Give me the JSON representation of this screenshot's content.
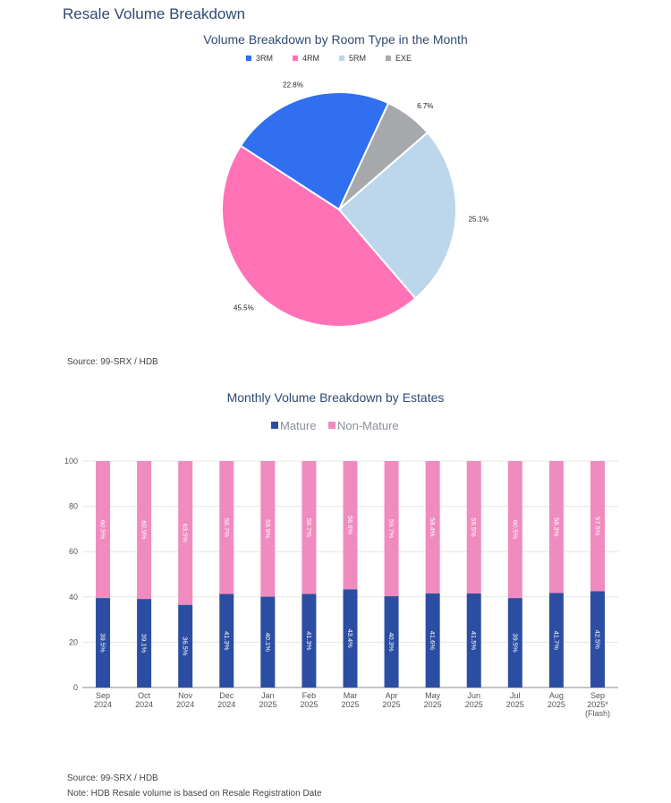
{
  "page": {
    "heading": "Resale Volume Breakdown",
    "source_top": "Source: 99-SRX / HDB",
    "source_bottom": "Source: 99-SRX / HDB",
    "note": "Note: HDB Resale volume is based on Resale Registration Date"
  },
  "chart_data": [
    {
      "type": "pie",
      "title": "Volume Breakdown by Room Type in the Month",
      "legend_position": "top",
      "slices": [
        {
          "name": "3RM",
          "value": 22.8,
          "label": "22.8%",
          "color": "#2f6ff0"
        },
        {
          "name": "4RM",
          "value": 45.5,
          "label": "45.5%",
          "color": "#ff72b6"
        },
        {
          "name": "5RM",
          "value": 25.1,
          "label": "25.1%",
          "color": "#bcd6ec"
        },
        {
          "name": "EXE",
          "value": 6.7,
          "label": "6.7%",
          "color": "#a7a8ab"
        }
      ]
    },
    {
      "type": "bar",
      "stacked": true,
      "title": "Monthly Volume Breakdown by Estates",
      "legend_position": "top",
      "grid": true,
      "ylim": [
        0,
        100
      ],
      "yticks": [
        0,
        20,
        40,
        60,
        80,
        100
      ],
      "categories": [
        [
          "Sep",
          "2024"
        ],
        [
          "Oct",
          "2024"
        ],
        [
          "Nov",
          "2024"
        ],
        [
          "Dec",
          "2024"
        ],
        [
          "Jan",
          "2025"
        ],
        [
          "Feb",
          "2025"
        ],
        [
          "Mar",
          "2025"
        ],
        [
          "Apr",
          "2025"
        ],
        [
          "May",
          "2025"
        ],
        [
          "Jun",
          "2025"
        ],
        [
          "Jul",
          "2025"
        ],
        [
          "Aug",
          "2025"
        ],
        [
          "Sep",
          "2025*",
          "(Flash)"
        ]
      ],
      "series": [
        {
          "name": "Mature",
          "color": "#2b4ea3",
          "values": [
            39.5,
            39.1,
            36.5,
            41.3,
            40.1,
            41.3,
            43.4,
            40.3,
            41.6,
            41.5,
            39.5,
            41.7,
            42.5
          ],
          "labels": [
            "39.5%",
            "39.1%",
            "36.5%",
            "41.3%",
            "40.1%",
            "41.3%",
            "43.4%",
            "40.3%",
            "41.6%",
            "41.5%",
            "39.5%",
            "41.7%",
            "42.5%"
          ]
        },
        {
          "name": "Non-Mature",
          "color": "#ef8bbf",
          "values": [
            60.5,
            60.9,
            63.5,
            58.7,
            59.9,
            58.7,
            56.6,
            59.7,
            58.4,
            58.5,
            60.5,
            58.3,
            57.5
          ],
          "labels": [
            "60.5%",
            "60.9%",
            "63.5%",
            "58.7%",
            "59.9%",
            "58.7%",
            "56.6%",
            "59.7%",
            "58.4%",
            "58.5%",
            "60.5%",
            "58.3%",
            "57.5%"
          ]
        }
      ]
    }
  ]
}
